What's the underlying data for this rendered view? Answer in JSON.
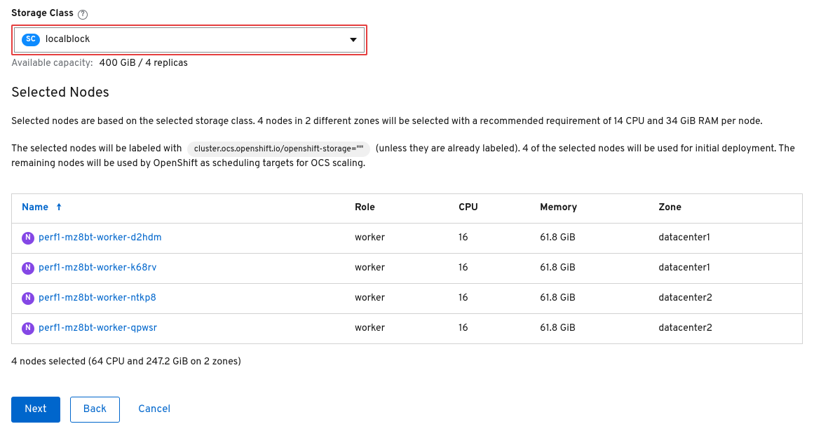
{
  "storageClass": {
    "label": "Storage Class",
    "badge": "SC",
    "selected": "localblock",
    "availableCapacityLabel": "Available capacity:",
    "availableCapacityValue": "400 GiB / 4 replicas"
  },
  "selectedNodes": {
    "title": "Selected Nodes",
    "desc1": "Selected nodes are based on the selected storage class. 4 nodes in 2 different zones will be selected with a recommended requirement of 14 CPU and 34 GiB RAM per node.",
    "desc2_pre": "The selected nodes will be labeled with",
    "desc2_chip": "cluster.ocs.openshift.io/openshift-storage=\"\"",
    "desc2_post": "(unless they are already labeled). 4 of the selected nodes will be used for initial deployment. The remaining nodes will be used by OpenShift as scheduling targets for OCS scaling."
  },
  "table": {
    "columns": {
      "name": "Name",
      "role": "Role",
      "cpu": "CPU",
      "memory": "Memory",
      "zone": "Zone"
    },
    "nodeBadge": "N",
    "rows": [
      {
        "name": "perf1-mz8bt-worker-d2hdm",
        "role": "worker",
        "cpu": "16",
        "memory": "61.8 GiB",
        "zone": "datacenter1"
      },
      {
        "name": "perf1-mz8bt-worker-k68rv",
        "role": "worker",
        "cpu": "16",
        "memory": "61.8 GiB",
        "zone": "datacenter1"
      },
      {
        "name": "perf1-mz8bt-worker-ntkp8",
        "role": "worker",
        "cpu": "16",
        "memory": "61.8 GiB",
        "zone": "datacenter2"
      },
      {
        "name": "perf1-mz8bt-worker-qpwsr",
        "role": "worker",
        "cpu": "16",
        "memory": "61.8 GiB",
        "zone": "datacenter2"
      }
    ],
    "summary": "4 nodes selected (64 CPU and 247.2 GiB on 2 zones)"
  },
  "actions": {
    "next": "Next",
    "back": "Back",
    "cancel": "Cancel"
  },
  "colors": {
    "primary": "#0066cc",
    "badgeBlue": "#0d8bff",
    "badgePurple": "#8447e5",
    "border": "#d2d2d2",
    "highlight": "#e53e3e",
    "muted": "#6a6e73",
    "chipBg": "#f0f0f0"
  }
}
